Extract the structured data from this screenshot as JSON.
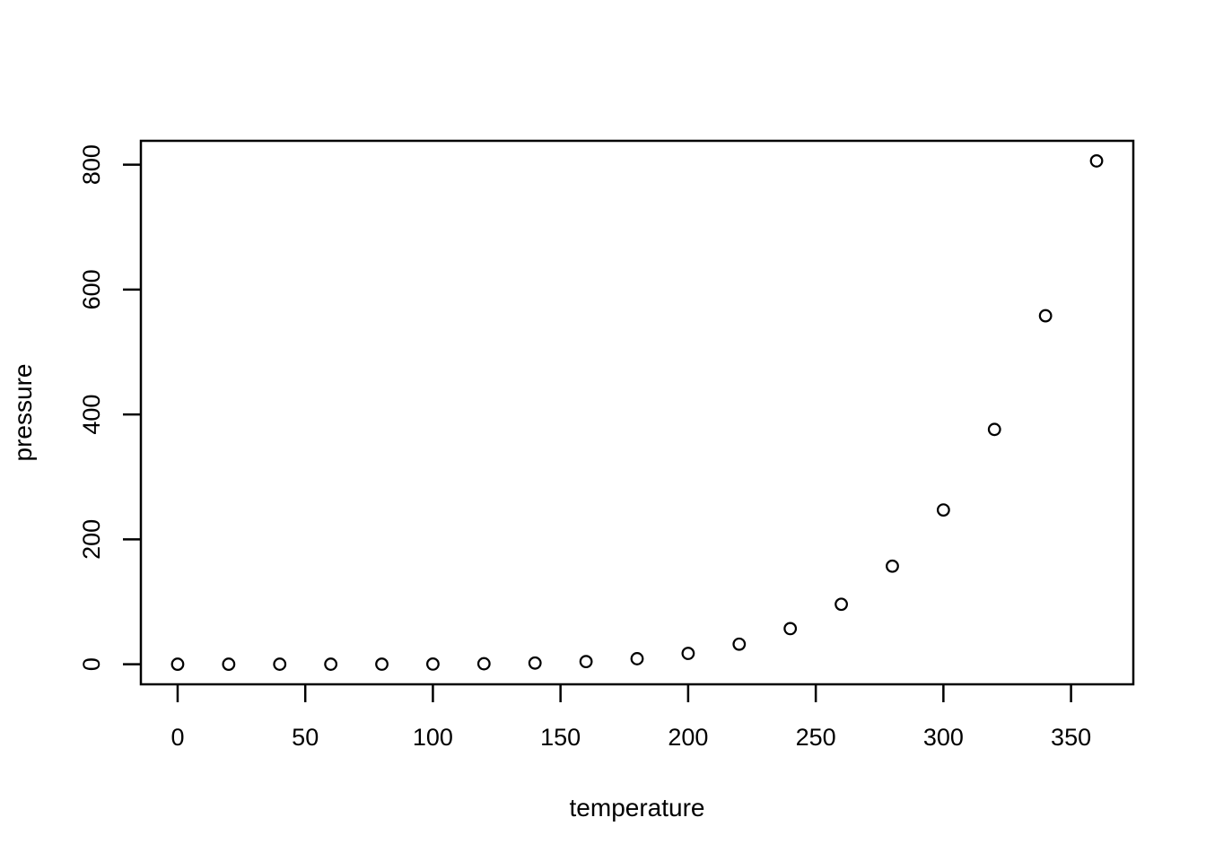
{
  "chart_data": {
    "type": "scatter",
    "title": "",
    "xlabel": "temperature",
    "ylabel": "pressure",
    "x": [
      0,
      20,
      40,
      60,
      80,
      100,
      120,
      140,
      160,
      180,
      200,
      220,
      240,
      260,
      280,
      300,
      320,
      340,
      360
    ],
    "y": [
      0.0002,
      0.0012,
      0.006,
      0.03,
      0.09,
      0.27,
      0.75,
      1.85,
      4.2,
      8.8,
      17.3,
      32.1,
      57,
      96,
      157,
      247,
      376,
      558,
      806
    ],
    "x_ticks": [
      0,
      50,
      100,
      150,
      200,
      250,
      300,
      350
    ],
    "x_tick_labels": [
      "0",
      "50",
      "100",
      "150",
      "200",
      "250",
      "300",
      "350"
    ],
    "y_ticks": [
      0,
      200,
      400,
      600,
      800
    ],
    "y_tick_labels": [
      "0",
      "200",
      "400",
      "600",
      "800"
    ],
    "xlim": [
      -14.4,
      374.4
    ],
    "ylim": [
      -32.2,
      838.2
    ],
    "grid": false,
    "legend_position": "none",
    "point_style": "open-circle",
    "colors": {
      "points": "#000000",
      "axis": "#000000",
      "text": "#000000",
      "background": "#ffffff"
    }
  }
}
